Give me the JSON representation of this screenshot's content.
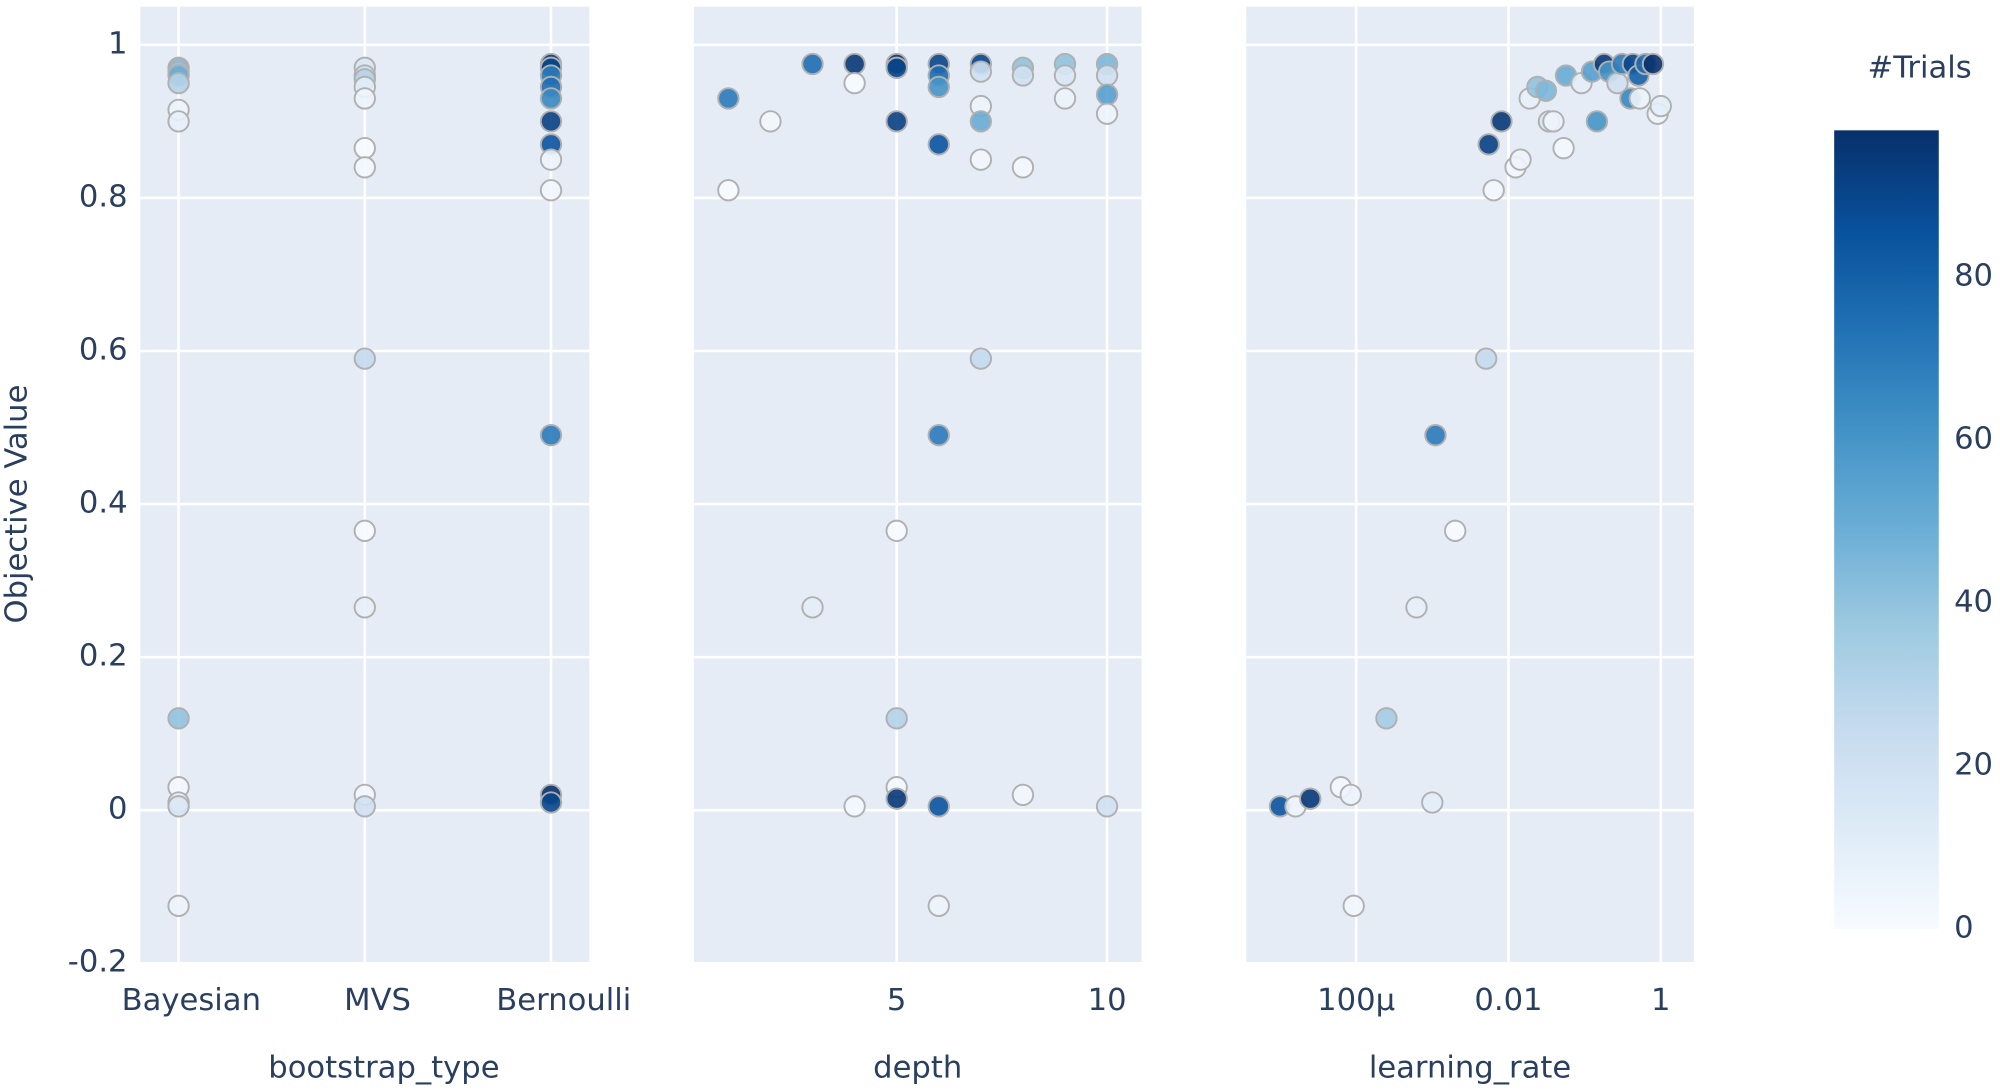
{
  "chart_data": [
    {
      "type": "scatter",
      "xlabel": "bootstrap_type",
      "ylabel": "Objective Value",
      "categories": [
        "Bayesian",
        "MVS",
        "Bernoulli"
      ],
      "x": [
        "Bayesian",
        "Bayesian",
        "Bayesian",
        "Bayesian",
        "Bayesian",
        "Bayesian",
        "Bayesian",
        "Bayesian",
        "Bayesian",
        "Bayesian",
        "Bayesian",
        "MVS",
        "MVS",
        "MVS",
        "MVS",
        "MVS",
        "MVS",
        "MVS",
        "MVS",
        "MVS",
        "MVS",
        "MVS",
        "MVS",
        "Bernoulli",
        "Bernoulli",
        "Bernoulli",
        "Bernoulli",
        "Bernoulli",
        "Bernoulli",
        "Bernoulli",
        "Bernoulli",
        "Bernoulli",
        "Bernoulli",
        "Bernoulli",
        "Bernoulli"
      ],
      "values": [
        0.97,
        0.965,
        0.96,
        0.95,
        0.915,
        0.9,
        0.12,
        0.03,
        0.01,
        0.005,
        -0.125,
        0.97,
        0.96,
        0.955,
        0.945,
        0.93,
        0.865,
        0.84,
        0.59,
        0.365,
        0.265,
        0.02,
        0.005,
        0.975,
        0.97,
        0.96,
        0.945,
        0.93,
        0.9,
        0.87,
        0.85,
        0.81,
        0.49,
        0.02,
        0.01
      ],
      "color_values": [
        45,
        40,
        50,
        30,
        5,
        8,
        40,
        2,
        10,
        15,
        5,
        15,
        20,
        30,
        10,
        5,
        0,
        2,
        25,
        0,
        8,
        3,
        20,
        95,
        90,
        70,
        75,
        65,
        92,
        85,
        5,
        3,
        70,
        98,
        90
      ],
      "ylim": [
        -0.2,
        1.05
      ],
      "yticks": [
        -0.2,
        0,
        0.2,
        0.4,
        0.6,
        0.8,
        1
      ],
      "grid": true
    },
    {
      "type": "scatter",
      "xlabel": "depth",
      "x": [
        1,
        1,
        2,
        3,
        3,
        4,
        4,
        4,
        5,
        5,
        5,
        5,
        5,
        5,
        5,
        6,
        6,
        6,
        6,
        6,
        6,
        6,
        7,
        7,
        7,
        7,
        7,
        7,
        8,
        8,
        8,
        8,
        9,
        9,
        9,
        10,
        10,
        10,
        10,
        10
      ],
      "values": [
        0.93,
        0.81,
        0.9,
        0.975,
        0.265,
        0.975,
        0.95,
        0.005,
        0.975,
        0.97,
        0.9,
        0.365,
        0.12,
        0.03,
        0.015,
        0.975,
        0.96,
        0.945,
        0.87,
        0.49,
        0.005,
        -0.125,
        0.975,
        0.965,
        0.92,
        0.9,
        0.85,
        0.59,
        0.97,
        0.96,
        0.84,
        0.02,
        0.975,
        0.96,
        0.93,
        0.975,
        0.96,
        0.935,
        0.91,
        0.005
      ],
      "color_values": [
        70,
        0,
        3,
        75,
        10,
        95,
        0,
        2,
        98,
        90,
        92,
        0,
        30,
        2,
        95,
        90,
        75,
        60,
        85,
        70,
        85,
        5,
        90,
        20,
        5,
        50,
        3,
        25,
        40,
        20,
        2,
        3,
        40,
        15,
        5,
        45,
        20,
        55,
        5,
        20
      ],
      "xlim": [
        0.18,
        10.82
      ],
      "xticks": [
        5,
        10
      ],
      "ylim": [
        -0.2,
        1.05
      ],
      "yticks": [
        -0.2,
        0,
        0.2,
        0.4,
        0.6,
        0.8,
        1
      ],
      "grid": true
    },
    {
      "type": "scatter",
      "xlabel": "learning_rate",
      "xlog": true,
      "x": [
        1e-05,
        1.6e-05,
        2.5e-05,
        6.3e-05,
        8.5e-05,
        9.3e-05,
        0.00025,
        0.00062,
        0.001,
        0.0011,
        0.002,
        0.0051,
        0.0055,
        0.0064,
        0.0081,
        0.0124,
        0.0144,
        0.019,
        0.024,
        0.031,
        0.034,
        0.039,
        0.053,
        0.057,
        0.091,
        0.125,
        0.145,
        0.18,
        0.21,
        0.27,
        0.31,
        0.4,
        0.43,
        0.51,
        0.53,
        0.63,
        0.79,
        0.91,
        1.0
      ],
      "values": [
        0.005,
        0.005,
        0.015,
        0.03,
        0.02,
        -0.125,
        0.12,
        0.265,
        0.01,
        0.49,
        0.365,
        0.59,
        0.87,
        0.81,
        0.9,
        0.84,
        0.85,
        0.93,
        0.945,
        0.94,
        0.9,
        0.9,
        0.865,
        0.96,
        0.95,
        0.965,
        0.9,
        0.975,
        0.965,
        0.95,
        0.975,
        0.93,
        0.975,
        0.96,
        0.93,
        0.975,
        0.975,
        0.91,
        0.92
      ],
      "color_values": [
        85,
        5,
        95,
        2,
        5,
        3,
        35,
        8,
        10,
        70,
        0,
        25,
        92,
        2,
        95,
        3,
        5,
        8,
        40,
        45,
        15,
        5,
        2,
        50,
        10,
        55,
        60,
        95,
        60,
        20,
        70,
        65,
        90,
        80,
        5,
        75,
        98,
        5,
        10
      ],
      "xlim": [
        3.6e-06,
        2.72
      ],
      "xticks": [
        {
          "value": 0.0001,
          "label": "100µ"
        },
        0.01,
        1
      ],
      "ylim": [
        -0.2,
        1.05
      ],
      "yticks": [
        -0.2,
        0,
        0.2,
        0.4,
        0.6,
        0.8,
        1
      ],
      "grid": true
    }
  ],
  "colorbar": {
    "title": "#Trials",
    "cmin": 0,
    "cmax": 98,
    "ticks": [
      0,
      20,
      40,
      60,
      80
    ],
    "colorscale": [
      "rgb(247,251,255)",
      "rgb(222,235,247)",
      "rgb(198,219,239)",
      "rgb(158,202,225)",
      "rgb(107,174,214)",
      "rgb(66,146,198)",
      "rgb(33,113,181)",
      "rgb(8,81,156)",
      "rgb(8,48,107)"
    ]
  }
}
